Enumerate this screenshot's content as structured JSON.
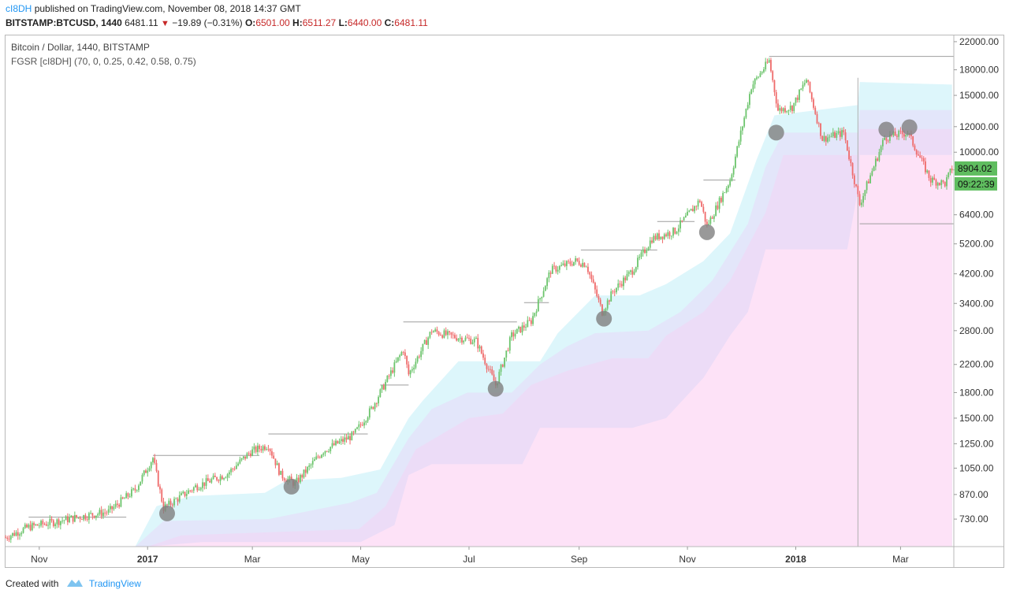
{
  "header": {
    "author": "cI8DH",
    "published": "published on TradingView.com, November 08, 2018 14:37 GMT",
    "symbol": "BITSTAMP:BTCUSD, 1440",
    "last": "6481.11",
    "change": "−19.89 (−0.31%)",
    "o_label": "O:",
    "o": "6501.00",
    "h_label": "H:",
    "h": "6511.27",
    "l_label": "L:",
    "l": "6440.00",
    "c_label": "C:",
    "c": "6481.11"
  },
  "legend": {
    "title": "Bitcoin / Dollar, 1440, BITSTAMP",
    "indicator": "FGSR [cI8DH] (70, 0, 0.25, 0.42, 0.58, 0.75)"
  },
  "footer": {
    "created": "Created with",
    "brand": "TradingView"
  },
  "colors": {
    "up": "#6cc46c",
    "down": "#ef6b6b",
    "zone_cyan": "#ddf6fb",
    "zone_blue": "#e3e6fa",
    "zone_purple": "#ecdcf7",
    "zone_pink": "#fde2f7",
    "price_tag": "#5fbd5f",
    "marker": "#808080"
  },
  "chart_data": {
    "type": "candlestick",
    "title": "Bitcoin / Dollar, 1440, BITSTAMP",
    "yscale": "log",
    "ylim": [
      600,
      23000
    ],
    "y_ticks": [
      730,
      870,
      1050,
      1250,
      1500,
      1800,
      2200,
      2800,
      3400,
      4200,
      5200,
      6400,
      10000,
      12000,
      15000,
      18000,
      22000
    ],
    "y_tick_labels": [
      "730.00",
      "870.00",
      "1050.00",
      "1250.00",
      "1500.00",
      "1800.00",
      "2200.00",
      "2800.00",
      "3400.00",
      "4200.00",
      "5200.00",
      "6400.00",
      "10000.00",
      "12000.00",
      "15000.00",
      "18000.00",
      "22000.00"
    ],
    "x_range": [
      "2016-10-13",
      "2018-03-31"
    ],
    "x_ticks": [
      {
        "date": "2016-11-01",
        "label": "Nov",
        "bold": false
      },
      {
        "date": "2017-01-01",
        "label": "2017",
        "bold": true
      },
      {
        "date": "2017-03-01",
        "label": "Mar",
        "bold": false
      },
      {
        "date": "2017-05-01",
        "label": "May",
        "bold": false
      },
      {
        "date": "2017-07-01",
        "label": "Jul",
        "bold": false
      },
      {
        "date": "2017-09-01",
        "label": "Sep",
        "bold": false
      },
      {
        "date": "2017-11-01",
        "label": "Nov",
        "bold": false
      },
      {
        "date": "2018-01-01",
        "label": "2018",
        "bold": true
      },
      {
        "date": "2018-03-01",
        "label": "Mar",
        "bold": false
      }
    ],
    "price_path": [
      [
        "2016-10-13",
        640
      ],
      [
        "2016-10-26",
        690
      ],
      [
        "2016-11-20",
        735
      ],
      [
        "2016-12-10",
        770
      ],
      [
        "2016-12-25",
        900
      ],
      [
        "2017-01-04",
        1130
      ],
      [
        "2017-01-10",
        790
      ],
      [
        "2017-01-28",
        920
      ],
      [
        "2017-02-15",
        1010
      ],
      [
        "2017-02-28",
        1180
      ],
      [
        "2017-03-10",
        1240
      ],
      [
        "2017-03-17",
        1000
      ],
      [
        "2017-03-25",
        940
      ],
      [
        "2017-04-10",
        1190
      ],
      [
        "2017-04-27",
        1330
      ],
      [
        "2017-05-07",
        1600
      ],
      [
        "2017-05-25",
        2450
      ],
      [
        "2017-05-28",
        2050
      ],
      [
        "2017-06-10",
        2800
      ],
      [
        "2017-06-20",
        2700
      ],
      [
        "2017-07-05",
        2600
      ],
      [
        "2017-07-16",
        1900
      ],
      [
        "2017-07-25",
        2700
      ],
      [
        "2017-08-05",
        3000
      ],
      [
        "2017-08-16",
        4300
      ],
      [
        "2017-08-30",
        4600
      ],
      [
        "2017-09-05",
        4500
      ],
      [
        "2017-09-14",
        3200
      ],
      [
        "2017-09-20",
        3700
      ],
      [
        "2017-10-01",
        4300
      ],
      [
        "2017-10-12",
        5400
      ],
      [
        "2017-10-25",
        5700
      ],
      [
        "2017-11-08",
        7100
      ],
      [
        "2017-11-12",
        5900
      ],
      [
        "2017-11-25",
        8200
      ],
      [
        "2017-12-07",
        16000
      ],
      [
        "2017-12-17",
        19200
      ],
      [
        "2017-12-22",
        13500
      ],
      [
        "2017-12-30",
        13800
      ],
      [
        "2018-01-07",
        16800
      ],
      [
        "2018-01-16",
        11000
      ],
      [
        "2018-01-28",
        11500
      ],
      [
        "2018-02-06",
        6900
      ],
      [
        "2018-02-20",
        11100
      ],
      [
        "2018-03-05",
        11500
      ],
      [
        "2018-03-18",
        8200
      ],
      [
        "2018-03-26",
        8000
      ],
      [
        "2018-03-30",
        8904
      ]
    ],
    "bands": [
      {
        "name": "zone-cyan",
        "points": [
          [
            "2016-11-25",
            600
          ],
          [
            "2016-12-25",
            600
          ],
          [
            "2017-01-06",
            800
          ],
          [
            "2017-01-25",
            860
          ],
          [
            "2017-03-08",
            880
          ],
          [
            "2017-03-20",
            960
          ],
          [
            "2017-04-20",
            980
          ],
          [
            "2017-05-12",
            1040
          ],
          [
            "2017-05-28",
            1500
          ],
          [
            "2017-06-05",
            1700
          ],
          [
            "2017-06-25",
            2250
          ],
          [
            "2017-08-10",
            2250
          ],
          [
            "2017-08-20",
            2750
          ],
          [
            "2017-09-10",
            3600
          ],
          [
            "2017-10-05",
            3600
          ],
          [
            "2017-10-20",
            3900
          ],
          [
            "2017-11-10",
            4600
          ],
          [
            "2017-11-25",
            5600
          ],
          [
            "2017-12-10",
            9500
          ],
          [
            "2017-12-20",
            13000
          ],
          [
            "2018-02-05",
            14000
          ],
          [
            "2018-02-06",
            16500
          ],
          [
            "2018-03-30",
            16200
          ]
        ]
      },
      {
        "name": "zone-blue",
        "points": [
          [
            "2016-12-25",
            600
          ],
          [
            "2017-01-10",
            720
          ],
          [
            "2017-03-10",
            730
          ],
          [
            "2017-04-25",
            820
          ],
          [
            "2017-05-10",
            880
          ],
          [
            "2017-05-28",
            1300
          ],
          [
            "2017-06-10",
            1600
          ],
          [
            "2017-06-30",
            1800
          ],
          [
            "2017-07-25",
            1800
          ],
          [
            "2017-08-10",
            2200
          ],
          [
            "2017-08-25",
            2500
          ],
          [
            "2017-09-10",
            2750
          ],
          [
            "2017-10-10",
            2800
          ],
          [
            "2017-10-28",
            3200
          ],
          [
            "2017-11-15",
            4000
          ],
          [
            "2017-12-05",
            6000
          ],
          [
            "2017-12-15",
            9000
          ],
          [
            "2017-12-25",
            11500
          ],
          [
            "2018-02-05",
            11500
          ],
          [
            "2018-02-06",
            13500
          ],
          [
            "2018-03-30",
            13500
          ]
        ]
      },
      {
        "name": "zone-purple",
        "points": [
          [
            "2017-01-01",
            600
          ],
          [
            "2017-01-20",
            650
          ],
          [
            "2017-04-30",
            680
          ],
          [
            "2017-05-15",
            800
          ],
          [
            "2017-06-01",
            1200
          ],
          [
            "2017-07-01",
            1500
          ],
          [
            "2017-07-20",
            1550
          ],
          [
            "2017-08-05",
            1900
          ],
          [
            "2017-08-25",
            2100
          ],
          [
            "2017-09-20",
            2300
          ],
          [
            "2017-10-10",
            2300
          ],
          [
            "2017-10-20",
            2700
          ],
          [
            "2017-11-10",
            3200
          ],
          [
            "2017-11-25",
            4000
          ],
          [
            "2017-12-15",
            6500
          ],
          [
            "2017-12-25",
            9800
          ],
          [
            "2018-02-05",
            9800
          ],
          [
            "2018-02-06",
            11800
          ],
          [
            "2018-03-30",
            11800
          ]
        ]
      },
      {
        "name": "zone-pink",
        "points": [
          [
            "2017-01-01",
            600
          ],
          [
            "2017-02-01",
            620
          ],
          [
            "2017-05-01",
            620
          ],
          [
            "2017-05-20",
            700
          ],
          [
            "2017-05-28",
            1000
          ],
          [
            "2017-06-10",
            1080
          ],
          [
            "2017-07-31",
            1080
          ],
          [
            "2017-08-10",
            1400
          ],
          [
            "2017-09-15",
            1400
          ],
          [
            "2017-10-01",
            1400
          ],
          [
            "2017-10-20",
            1500
          ],
          [
            "2017-11-10",
            2000
          ],
          [
            "2017-11-25",
            2700
          ],
          [
            "2017-12-05",
            3200
          ],
          [
            "2017-12-15",
            5000
          ],
          [
            "2018-01-30",
            5000
          ],
          [
            "2018-02-06",
            8200
          ],
          [
            "2018-02-06",
            9800
          ],
          [
            "2018-03-30",
            9800
          ]
        ]
      }
    ],
    "markers": [
      {
        "date": "2017-01-12",
        "price": 760
      },
      {
        "date": "2017-03-23",
        "price": 920
      },
      {
        "date": "2017-07-16",
        "price": 1850
      },
      {
        "date": "2017-09-15",
        "price": 3050
      },
      {
        "date": "2017-11-12",
        "price": 5650
      },
      {
        "date": "2017-12-21",
        "price": 11500
      },
      {
        "date": "2018-02-21",
        "price": 11750
      },
      {
        "date": "2018-03-06",
        "price": 11950
      }
    ],
    "resistance_lines": [
      {
        "from": "2016-10-26",
        "to": "2016-12-20",
        "price": 740
      },
      {
        "from": "2017-01-04",
        "to": "2017-03-05",
        "price": 1150
      },
      {
        "from": "2017-03-10",
        "to": "2017-05-05",
        "price": 1340
      },
      {
        "from": "2017-05-12",
        "to": "2017-05-28",
        "price": 1900
      },
      {
        "from": "2017-05-25",
        "to": "2017-07-28",
        "price": 2980
      },
      {
        "from": "2017-08-01",
        "to": "2017-08-15",
        "price": 3420
      },
      {
        "from": "2017-09-02",
        "to": "2017-10-15",
        "price": 4980
      },
      {
        "from": "2017-10-15",
        "to": "2017-11-05",
        "price": 6100
      },
      {
        "from": "2017-11-10",
        "to": "2017-11-28",
        "price": 8200
      },
      {
        "from": "2017-12-17",
        "to": "2018-03-31",
        "price": 19800
      },
      {
        "from": "2018-02-06",
        "to": "2018-03-31",
        "price": 6000
      }
    ],
    "vertical_line": {
      "date": "2018-02-05",
      "price_top": 17000
    },
    "last_price": {
      "value": 8904.02,
      "label": "8904.02",
      "countdown": "09:22:39"
    }
  }
}
